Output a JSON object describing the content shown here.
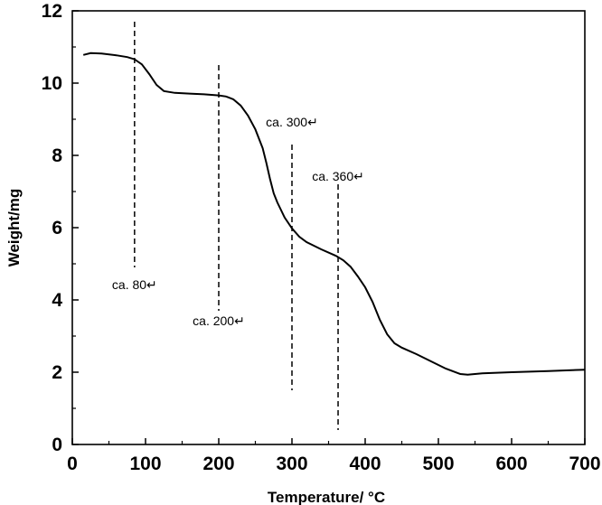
{
  "chart_data": {
    "type": "line",
    "xlabel": "Temperature/ °C",
    "ylabel": "Weight/mg",
    "xlim": [
      0,
      700
    ],
    "ylim": [
      0,
      12
    ],
    "xticks": [
      0,
      100,
      200,
      300,
      400,
      500,
      600,
      700
    ],
    "xtick_labels": [
      "0",
      "100",
      "200",
      "300",
      "400",
      "500",
      "600",
      "700"
    ],
    "yticks": [
      0,
      2,
      4,
      6,
      8,
      10,
      12
    ],
    "ytick_labels": [
      "0",
      "2",
      "4",
      "6",
      "8",
      "10",
      "12"
    ],
    "grid": false,
    "series": [
      {
        "x": [
          15,
          25,
          40,
          60,
          75,
          85,
          95,
          105,
          115,
          125,
          140,
          160,
          180,
          200,
          210,
          220,
          230,
          240,
          250,
          260,
          265,
          270,
          275,
          280,
          290,
          300,
          310,
          320,
          340,
          360,
          370,
          380,
          390,
          400,
          410,
          420,
          430,
          440,
          450,
          470,
          490,
          510,
          530,
          540,
          560,
          600,
          650,
          700
        ],
        "y": [
          10.78,
          10.83,
          10.82,
          10.77,
          10.72,
          10.66,
          10.52,
          10.25,
          9.95,
          9.78,
          9.73,
          9.71,
          9.69,
          9.66,
          9.63,
          9.55,
          9.38,
          9.1,
          8.72,
          8.2,
          7.8,
          7.35,
          6.95,
          6.7,
          6.28,
          5.98,
          5.75,
          5.6,
          5.4,
          5.22,
          5.1,
          4.92,
          4.65,
          4.35,
          3.95,
          3.45,
          3.05,
          2.8,
          2.68,
          2.5,
          2.3,
          2.1,
          1.95,
          1.93,
          1.97,
          2.0,
          2.03,
          2.07
        ]
      }
    ],
    "annotations": [
      {
        "label": "ca. 80↵",
        "x": 85,
        "y_range": [
          4.9,
          11.7
        ],
        "label_x": 85,
        "label_y": 4.3
      },
      {
        "label": "ca. 200↵",
        "x": 200,
        "y_range": [
          3.7,
          10.5
        ],
        "label_x": 200,
        "label_y": 3.3
      },
      {
        "label": "ca. 300↵",
        "x": 300,
        "y_range": [
          1.5,
          8.3
        ],
        "label_x": 300,
        "label_y": 8.8
      },
      {
        "label": "ca. 360↵",
        "x": 363,
        "y_range": [
          0.4,
          7.2
        ],
        "label_x": 363,
        "label_y": 7.3
      }
    ]
  }
}
